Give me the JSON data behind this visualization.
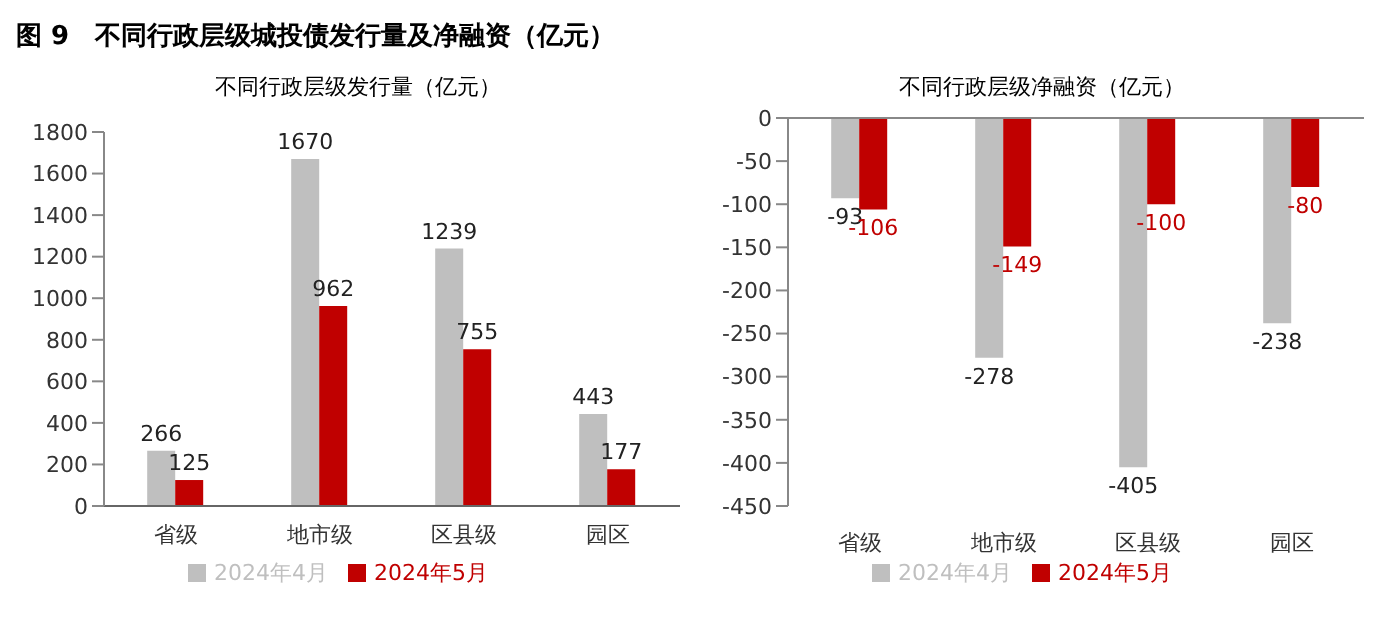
{
  "chart_data": [
    {
      "type": "bar",
      "title": "图 9　不同行政层级城投债发行量及净融资（亿元）",
      "subtitle": "不同行政层级发行量（亿元）",
      "categories": [
        "省级",
        "地市级",
        "区县级",
        "园区"
      ],
      "series": [
        {
          "name": "2024年4月",
          "color": "#bfbfbf",
          "values": [
            266,
            1670,
            1239,
            443
          ]
        },
        {
          "name": "2024年5月",
          "color": "#c00000",
          "values": [
            125,
            962,
            755,
            177
          ]
        }
      ],
      "ylim": [
        0,
        1800
      ],
      "yticks": [
        0,
        200,
        400,
        600,
        800,
        1000,
        1200,
        1400,
        1600,
        1800
      ],
      "data_labels": true,
      "legend": "bottom"
    },
    {
      "type": "bar",
      "title": "不同行政层级净融资（亿元）",
      "categories": [
        "省级",
        "地市级",
        "区县级",
        "园区"
      ],
      "series": [
        {
          "name": "2024年4月",
          "color": "#bfbfbf",
          "values": [
            -93,
            -278,
            -405,
            -238
          ]
        },
        {
          "name": "2024年5月",
          "color": "#c00000",
          "values": [
            -106,
            -149,
            -100,
            -80
          ]
        }
      ],
      "ylim": [
        -450,
        0
      ],
      "yticks": [
        -450,
        -400,
        -350,
        -300,
        -250,
        -200,
        -150,
        -100,
        -50,
        0
      ],
      "data_labels": true,
      "legend": "bottom"
    }
  ]
}
